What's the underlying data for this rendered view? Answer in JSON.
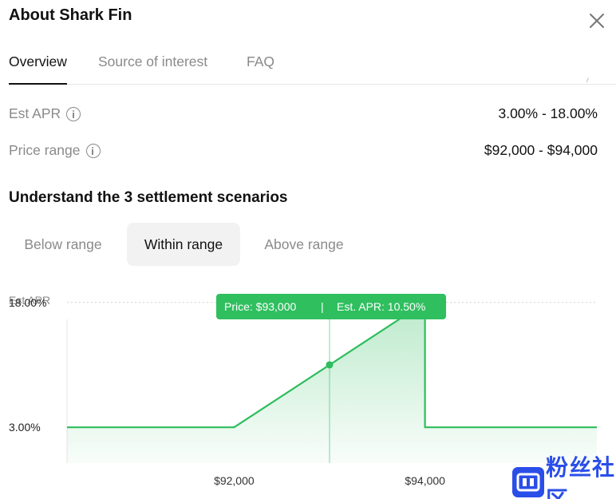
{
  "dialog": {
    "title": "About Shark Fin"
  },
  "tabs": [
    {
      "label": "Overview",
      "active": true
    },
    {
      "label": "Source of interest",
      "active": false
    },
    {
      "label": "FAQ",
      "active": false
    }
  ],
  "details": {
    "est_apr": {
      "label": "Est APR",
      "value": "3.00% - 18.00%"
    },
    "price_range": {
      "label": "Price range",
      "value": "$92,000 - $94,000"
    }
  },
  "scenarios": {
    "title": "Understand the 3 settlement scenarios",
    "options": [
      {
        "label": "Below range",
        "active": false
      },
      {
        "label": "Within range",
        "active": true
      },
      {
        "label": "Above range",
        "active": false
      }
    ]
  },
  "colors": {
    "accent_green": "#2dbd5c",
    "tooltip_green": "#2fbf5f"
  },
  "watermark": {
    "text": "粉丝社区"
  },
  "chart_data": {
    "type": "area",
    "ylabel": "Est APR",
    "xlabel": "",
    "y_ticks": [
      {
        "value": 18,
        "label": "18.00%"
      },
      {
        "value": 3,
        "label": "3.00%"
      }
    ],
    "x_ticks": [
      {
        "value": 92000,
        "label": "$92,000"
      },
      {
        "value": 94000,
        "label": "$94,000"
      }
    ],
    "xlim": [
      90250,
      95800
    ],
    "ylim": [
      -1.3,
      19.8
    ],
    "series": [
      {
        "points": [
          {
            "x": 90250,
            "y": 3
          },
          {
            "x": 92000,
            "y": 3
          },
          {
            "x": 94000,
            "y": 18
          },
          {
            "x": 94000,
            "y": 3
          },
          {
            "x": 95800,
            "y": 3
          }
        ]
      }
    ],
    "cursor": {
      "x": 93000,
      "y": 10.5
    },
    "tooltip": {
      "price": "Price: $93,000",
      "separator": "|",
      "apr": "Est. APR: 10.50%"
    },
    "grid": "dotted line at max",
    "legend": "none"
  }
}
